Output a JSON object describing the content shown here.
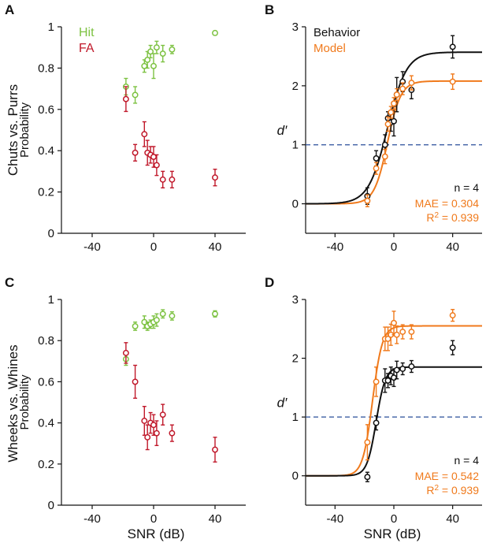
{
  "colors": {
    "hit": "#7dc242",
    "fa": "#c0182a",
    "behavior": "#111111",
    "model": "#f07a1c",
    "threshold": "#2a4f9a"
  },
  "x_axis_label": "SNR (dB)",
  "chart_data": [
    {
      "panel": "A",
      "type": "scatter",
      "row_label": "Chuts vs. Purrs",
      "ylabel": "Probability",
      "xlim": [
        -60,
        60
      ],
      "ylim": [
        0,
        1
      ],
      "xticks": [
        -40,
        0,
        40
      ],
      "xtick_labels": [
        "-40",
        "0",
        "40"
      ],
      "yticks": [
        0,
        0.2,
        0.4,
        0.6,
        0.8,
        1
      ],
      "ytick_labels": [
        "0",
        "0.2",
        "0.4",
        "0.6",
        "0.8",
        "1"
      ],
      "legend": [
        "Hit",
        "FA"
      ],
      "series": [
        {
          "name": "Hit",
          "color_key": "hit",
          "x": [
            -18,
            -12,
            -6,
            -4,
            -2,
            0,
            2,
            6,
            12,
            40
          ],
          "y": [
            0.71,
            0.67,
            0.81,
            0.84,
            0.88,
            0.81,
            0.9,
            0.87,
            0.89,
            0.97
          ],
          "err": [
            0.04,
            0.04,
            0.03,
            0.04,
            0.03,
            0.06,
            0.03,
            0.04,
            0.02,
            0.01
          ]
        },
        {
          "name": "FA",
          "color_key": "fa",
          "x": [
            -18,
            -12,
            -6,
            -4,
            -2,
            0,
            2,
            6,
            12,
            40
          ],
          "y": [
            0.65,
            0.39,
            0.48,
            0.39,
            0.38,
            0.37,
            0.33,
            0.26,
            0.26,
            0.27
          ],
          "err": [
            0.06,
            0.04,
            0.06,
            0.06,
            0.04,
            0.05,
            0.05,
            0.04,
            0.04,
            0.04
          ]
        }
      ]
    },
    {
      "panel": "B",
      "type": "line",
      "ylabel": "d′",
      "xlim": [
        -60,
        60
      ],
      "ylim": [
        -0.5,
        3
      ],
      "xticks": [
        -40,
        0,
        40
      ],
      "xtick_labels": [
        "-40",
        "0",
        "40"
      ],
      "yticks": [
        0,
        1,
        2,
        3
      ],
      "ytick_labels": [
        "0",
        "1",
        "2",
        "3"
      ],
      "threshold": 1,
      "legend": [
        "Behavior",
        "Model"
      ],
      "stats": {
        "n": "n = 4",
        "mae": "MAE = 0.304",
        "r2_prefix": "R",
        "r2_sup": "2",
        "r2_value": " = 0.939"
      },
      "curves": [
        {
          "name": "Behavior",
          "color_key": "behavior",
          "amp": 2.57,
          "mid": -4.3,
          "slope": 0.155
        },
        {
          "name": "Model",
          "color_key": "model",
          "amp": 2.08,
          "mid": -4.3,
          "slope": 0.22
        }
      ],
      "series": [
        {
          "name": "Behavior",
          "color_key": "behavior",
          "x": [
            -18,
            -12,
            -6,
            -4,
            -2,
            0,
            2,
            6,
            12,
            40
          ],
          "y": [
            0.13,
            0.77,
            1.0,
            1.45,
            1.38,
            1.4,
            1.85,
            2.07,
            1.93,
            2.66
          ],
          "err": [
            0.14,
            0.13,
            0.17,
            0.11,
            0.15,
            0.25,
            0.29,
            0.17,
            0.15,
            0.19
          ]
        },
        {
          "name": "Model",
          "color_key": "model",
          "x": [
            -18,
            -12,
            -6,
            -4,
            -2,
            0,
            2,
            6,
            12,
            40
          ],
          "y": [
            0.05,
            0.6,
            0.8,
            1.35,
            1.55,
            1.7,
            1.85,
            1.95,
            2.05,
            2.07
          ],
          "err": [
            0.1,
            0.1,
            0.12,
            0.12,
            0.1,
            0.1,
            0.1,
            0.1,
            0.12,
            0.13
          ]
        }
      ]
    },
    {
      "panel": "C",
      "type": "scatter",
      "row_label": "Wheeks vs. Whines",
      "ylabel": "Probability",
      "xlim": [
        -60,
        60
      ],
      "ylim": [
        0,
        1
      ],
      "xticks": [
        -40,
        0,
        40
      ],
      "xtick_labels": [
        "-40",
        "0",
        "40"
      ],
      "yticks": [
        0,
        0.2,
        0.4,
        0.6,
        0.8,
        1
      ],
      "ytick_labels": [
        "0",
        "0.2",
        "0.4",
        "0.6",
        "0.8",
        "1"
      ],
      "series": [
        {
          "name": "Hit",
          "color_key": "hit",
          "x": [
            -18,
            -12,
            -6,
            -4,
            -2,
            0,
            2,
            6,
            12,
            40
          ],
          "y": [
            0.71,
            0.87,
            0.89,
            0.87,
            0.88,
            0.89,
            0.9,
            0.93,
            0.92,
            0.93
          ],
          "err": [
            0.03,
            0.02,
            0.03,
            0.02,
            0.02,
            0.03,
            0.03,
            0.02,
            0.02,
            0.015
          ]
        },
        {
          "name": "FA",
          "color_key": "fa",
          "x": [
            -18,
            -12,
            -6,
            -4,
            -2,
            0,
            2,
            6,
            12,
            40
          ],
          "y": [
            0.74,
            0.6,
            0.41,
            0.33,
            0.4,
            0.39,
            0.35,
            0.44,
            0.35,
            0.27
          ],
          "err": [
            0.05,
            0.08,
            0.07,
            0.06,
            0.05,
            0.05,
            0.06,
            0.05,
            0.04,
            0.06
          ]
        }
      ]
    },
    {
      "panel": "D",
      "type": "line",
      "ylabel": "d′",
      "xlim": [
        -60,
        60
      ],
      "ylim": [
        -0.5,
        3
      ],
      "xticks": [
        -40,
        0,
        40
      ],
      "xtick_labels": [
        "-40",
        "0",
        "40"
      ],
      "yticks": [
        0,
        1,
        2,
        3
      ],
      "ytick_labels": [
        "0",
        "1",
        "2",
        "3"
      ],
      "threshold": 1,
      "stats": {
        "n": "n = 4",
        "mae": "MAE = 0.542",
        "r2_prefix": "R",
        "r2_sup": "2",
        "r2_value": " = 0.939"
      },
      "curves": [
        {
          "name": "Behavior",
          "color_key": "behavior",
          "amp": 1.85,
          "mid": -12,
          "slope": 0.32
        },
        {
          "name": "Model",
          "color_key": "model",
          "amp": 2.55,
          "mid": -14.5,
          "slope": 0.3
        }
      ],
      "series": [
        {
          "name": "Behavior",
          "color_key": "behavior",
          "x": [
            -18,
            -12,
            -6,
            -4,
            -2,
            0,
            2,
            6,
            12,
            40
          ],
          "y": [
            -0.02,
            0.9,
            1.62,
            1.62,
            1.7,
            1.67,
            1.8,
            1.82,
            1.86,
            2.18
          ],
          "err": [
            0.08,
            0.12,
            0.2,
            0.12,
            0.15,
            0.15,
            0.15,
            0.1,
            0.1,
            0.12
          ]
        },
        {
          "name": "Model",
          "color_key": "model",
          "x": [
            -18,
            -12,
            -6,
            -4,
            -2,
            0,
            2,
            6,
            12,
            40
          ],
          "y": [
            0.57,
            1.6,
            2.33,
            2.33,
            2.4,
            2.6,
            2.4,
            2.45,
            2.45,
            2.73
          ],
          "err": [
            0.3,
            0.25,
            0.2,
            0.2,
            0.18,
            0.2,
            0.15,
            0.12,
            0.12,
            0.1
          ]
        }
      ]
    }
  ]
}
